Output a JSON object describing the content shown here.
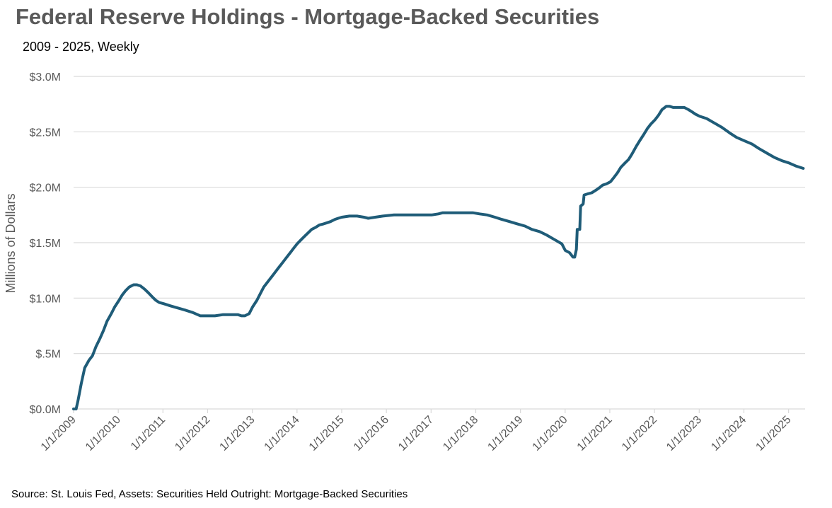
{
  "chart_data": {
    "type": "line",
    "title": "Federal Reserve Holdings - Mortgage-Backed Securities",
    "subtitle": "2009 - 2025, Weekly",
    "ylabel": "Millions of Dollars",
    "xlabel": "",
    "source": "Source: St. Louis Fed, Assets: Securities Held Outright: Mortgage-Backed Securities",
    "ylim": [
      0,
      3.0
    ],
    "y_ticks": [
      "$0.0M",
      "$.5M",
      "$1.0M",
      "$1.5M",
      "$2.0M",
      "$2.5M",
      "$3.0M"
    ],
    "x_ticks": [
      "1/1/2009",
      "1/1/2010",
      "1/1/2011",
      "1/1/2012",
      "1/1/2013",
      "1/1/2014",
      "1/1/2015",
      "1/1/2016",
      "1/1/2017",
      "1/1/2018",
      "1/1/2019",
      "1/1/2020",
      "1/1/2021",
      "1/1/2022",
      "1/1/2023",
      "1/1/2024",
      "1/1/2025"
    ],
    "grid": "horizontal",
    "legend": "none",
    "colors": {
      "line": "#1F5C78",
      "grid": "#D9D9D9",
      "text": "#595959"
    },
    "series": [
      {
        "points": [
          [
            "2009-01-01",
            0.0
          ],
          [
            "2009-01-22",
            0.0
          ],
          [
            "2009-02-05",
            0.07
          ],
          [
            "2009-03-05",
            0.23
          ],
          [
            "2009-04-02",
            0.37
          ],
          [
            "2009-05-07",
            0.44
          ],
          [
            "2009-06-04",
            0.48
          ],
          [
            "2009-07-02",
            0.56
          ],
          [
            "2009-08-06",
            0.64
          ],
          [
            "2009-09-03",
            0.71
          ],
          [
            "2009-10-01",
            0.79
          ],
          [
            "2009-11-05",
            0.86
          ],
          [
            "2009-12-03",
            0.92
          ],
          [
            "2010-01-07",
            0.98
          ],
          [
            "2010-02-04",
            1.03
          ],
          [
            "2010-03-04",
            1.07
          ],
          [
            "2010-04-01",
            1.1
          ],
          [
            "2010-05-06",
            1.12
          ],
          [
            "2010-06-03",
            1.12
          ],
          [
            "2010-07-01",
            1.11
          ],
          [
            "2010-08-05",
            1.08
          ],
          [
            "2010-09-02",
            1.05
          ],
          [
            "2010-10-07",
            1.01
          ],
          [
            "2010-11-04",
            0.98
          ],
          [
            "2010-12-02",
            0.96
          ],
          [
            "2011-01-06",
            0.95
          ],
          [
            "2011-03-03",
            0.93
          ],
          [
            "2011-05-05",
            0.91
          ],
          [
            "2011-07-07",
            0.89
          ],
          [
            "2011-09-01",
            0.87
          ],
          [
            "2011-11-03",
            0.84
          ],
          [
            "2011-12-29",
            0.84
          ],
          [
            "2012-03-01",
            0.84
          ],
          [
            "2012-05-03",
            0.85
          ],
          [
            "2012-07-05",
            0.85
          ],
          [
            "2012-09-06",
            0.85
          ],
          [
            "2012-10-04",
            0.84
          ],
          [
            "2012-11-01",
            0.84
          ],
          [
            "2012-12-06",
            0.86
          ],
          [
            "2013-01-03",
            0.92
          ],
          [
            "2013-02-07",
            0.98
          ],
          [
            "2013-03-07",
            1.04
          ],
          [
            "2013-04-04",
            1.1
          ],
          [
            "2013-05-02",
            1.14
          ],
          [
            "2013-06-06",
            1.19
          ],
          [
            "2013-07-04",
            1.23
          ],
          [
            "2013-08-01",
            1.27
          ],
          [
            "2013-09-05",
            1.32
          ],
          [
            "2013-10-03",
            1.36
          ],
          [
            "2013-11-07",
            1.41
          ],
          [
            "2013-12-05",
            1.45
          ],
          [
            "2014-01-02",
            1.49
          ],
          [
            "2014-02-06",
            1.53
          ],
          [
            "2014-03-06",
            1.56
          ],
          [
            "2014-04-03",
            1.59
          ],
          [
            "2014-05-01",
            1.62
          ],
          [
            "2014-06-05",
            1.64
          ],
          [
            "2014-07-03",
            1.66
          ],
          [
            "2014-08-07",
            1.67
          ],
          [
            "2014-09-04",
            1.68
          ],
          [
            "2014-10-02",
            1.69
          ],
          [
            "2014-11-06",
            1.71
          ],
          [
            "2014-12-04",
            1.72
          ],
          [
            "2015-01-01",
            1.73
          ],
          [
            "2015-03-05",
            1.74
          ],
          [
            "2015-05-07",
            1.74
          ],
          [
            "2015-07-02",
            1.73
          ],
          [
            "2015-08-06",
            1.72
          ],
          [
            "2015-10-01",
            1.73
          ],
          [
            "2015-12-03",
            1.74
          ],
          [
            "2016-03-03",
            1.75
          ],
          [
            "2016-06-02",
            1.75
          ],
          [
            "2016-09-01",
            1.75
          ],
          [
            "2016-11-03",
            1.75
          ],
          [
            "2017-01-05",
            1.75
          ],
          [
            "2017-03-02",
            1.76
          ],
          [
            "2017-04-06",
            1.77
          ],
          [
            "2017-07-06",
            1.77
          ],
          [
            "2017-10-05",
            1.77
          ],
          [
            "2017-12-07",
            1.77
          ],
          [
            "2018-02-01",
            1.76
          ],
          [
            "2018-04-05",
            1.75
          ],
          [
            "2018-06-07",
            1.73
          ],
          [
            "2018-08-02",
            1.71
          ],
          [
            "2018-10-04",
            1.69
          ],
          [
            "2018-12-06",
            1.67
          ],
          [
            "2019-02-07",
            1.65
          ],
          [
            "2019-04-04",
            1.62
          ],
          [
            "2019-06-06",
            1.6
          ],
          [
            "2019-08-01",
            1.57
          ],
          [
            "2019-10-03",
            1.53
          ],
          [
            "2019-12-05",
            1.49
          ],
          [
            "2020-01-02",
            1.43
          ],
          [
            "2020-02-06",
            1.41
          ],
          [
            "2020-03-05",
            1.37
          ],
          [
            "2020-03-19",
            1.37
          ],
          [
            "2020-04-02",
            1.44
          ],
          [
            "2020-04-09",
            1.62
          ],
          [
            "2020-04-30",
            1.62
          ],
          [
            "2020-05-07",
            1.83
          ],
          [
            "2020-05-28",
            1.85
          ],
          [
            "2020-06-04",
            1.93
          ],
          [
            "2020-07-02",
            1.94
          ],
          [
            "2020-08-06",
            1.95
          ],
          [
            "2020-09-03",
            1.97
          ],
          [
            "2020-10-01",
            1.99
          ],
          [
            "2020-11-05",
            2.02
          ],
          [
            "2020-12-03",
            2.03
          ],
          [
            "2021-01-07",
            2.05
          ],
          [
            "2021-02-04",
            2.09
          ],
          [
            "2021-03-04",
            2.13
          ],
          [
            "2021-04-01",
            2.18
          ],
          [
            "2021-05-06",
            2.22
          ],
          [
            "2021-06-03",
            2.25
          ],
          [
            "2021-07-01",
            2.3
          ],
          [
            "2021-08-05",
            2.37
          ],
          [
            "2021-09-02",
            2.42
          ],
          [
            "2021-10-07",
            2.48
          ],
          [
            "2021-11-04",
            2.53
          ],
          [
            "2021-12-02",
            2.57
          ],
          [
            "2022-01-06",
            2.61
          ],
          [
            "2022-02-03",
            2.65
          ],
          [
            "2022-03-03",
            2.7
          ],
          [
            "2022-04-07",
            2.73
          ],
          [
            "2022-05-05",
            2.73
          ],
          [
            "2022-06-02",
            2.72
          ],
          [
            "2022-07-07",
            2.72
          ],
          [
            "2022-08-04",
            2.72
          ],
          [
            "2022-09-01",
            2.72
          ],
          [
            "2022-10-06",
            2.7
          ],
          [
            "2022-11-03",
            2.68
          ],
          [
            "2022-12-01",
            2.66
          ],
          [
            "2023-01-05",
            2.64
          ],
          [
            "2023-03-02",
            2.62
          ],
          [
            "2023-05-04",
            2.58
          ],
          [
            "2023-07-06",
            2.54
          ],
          [
            "2023-09-07",
            2.49
          ],
          [
            "2023-11-02",
            2.45
          ],
          [
            "2024-01-04",
            2.42
          ],
          [
            "2024-03-07",
            2.39
          ],
          [
            "2024-05-02",
            2.35
          ],
          [
            "2024-07-04",
            2.31
          ],
          [
            "2024-09-05",
            2.27
          ],
          [
            "2024-11-07",
            2.24
          ],
          [
            "2025-01-02",
            2.22
          ],
          [
            "2025-03-06",
            2.19
          ],
          [
            "2025-05-01",
            2.17
          ]
        ]
      }
    ]
  }
}
